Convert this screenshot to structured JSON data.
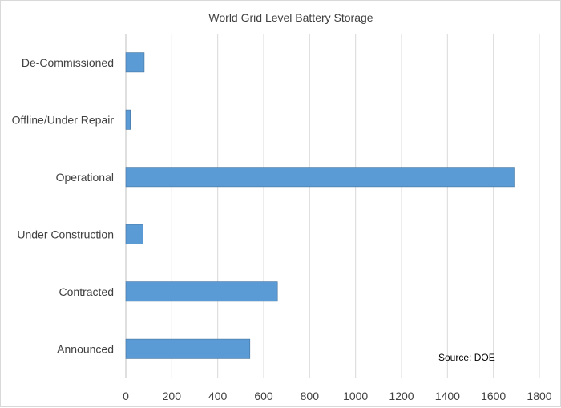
{
  "chart_data": {
    "type": "bar",
    "orientation": "horizontal",
    "title": "World Grid Level Battery Storage",
    "categories": [
      "De-Commissioned",
      "Offline/Under Repair",
      "Operational",
      "Under Construction",
      "Contracted",
      "Announced"
    ],
    "values": [
      80,
      20,
      1690,
      75,
      660,
      540
    ],
    "xlim": [
      0,
      1800
    ],
    "xticks": [
      "0",
      "200",
      "400",
      "600",
      "800",
      "1000",
      "1200",
      "1400",
      "1600",
      "1800"
    ],
    "grid": true,
    "annotation": "Source:  DOE",
    "colors": {
      "bar_fill": "#5b9bd5",
      "bar_stroke": "#41719c",
      "grid": "#d9d9d9",
      "axis": "#bfbfbf",
      "text": "#404040"
    }
  }
}
